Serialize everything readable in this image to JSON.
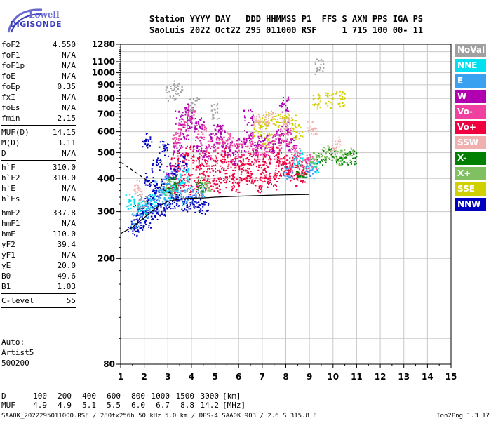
{
  "logo": {
    "line1": "Lowell",
    "line2": "DIGISONDE"
  },
  "header": {
    "line1": "Station YYYY DAY   DDD HHMMSS P1  FFS S AXN PPS IGA PS",
    "line2": "SaoLuis 2022 Oct22 295 011000 RSF     1 715 100 00- 11"
  },
  "params": [
    {
      "name": "foF2",
      "value": "4.550"
    },
    {
      "name": "foF1",
      "value": "N/A"
    },
    {
      "name": "foF1p",
      "value": "N/A"
    },
    {
      "name": "foE",
      "value": "N/A"
    },
    {
      "name": "foEp",
      "value": "0.35"
    },
    {
      "name": "fxI",
      "value": "N/A"
    },
    {
      "name": "foEs",
      "value": "N/A"
    },
    {
      "name": "fmin",
      "value": "2.15",
      "sep": true
    },
    {
      "name": "MUF(D)",
      "value": "14.15"
    },
    {
      "name": "M(D)",
      "value": "3.11"
    },
    {
      "name": "D",
      "value": "N/A",
      "sep": true
    },
    {
      "name": "h`F",
      "value": "310.0"
    },
    {
      "name": "h`F2",
      "value": "310.0"
    },
    {
      "name": "h`E",
      "value": "N/A"
    },
    {
      "name": "h`Es",
      "value": "N/A",
      "sep": true
    },
    {
      "name": "hmF2",
      "value": "337.8"
    },
    {
      "name": "hmF1",
      "value": "N/A"
    },
    {
      "name": "hmE",
      "value": "110.0"
    },
    {
      "name": "yF2",
      "value": "39.4"
    },
    {
      "name": "yF1",
      "value": "N/A"
    },
    {
      "name": "yE",
      "value": "20.0"
    },
    {
      "name": "B0",
      "value": "49.6"
    },
    {
      "name": "B1",
      "value": "1.03",
      "sep": true
    },
    {
      "name": "C-level",
      "value": "55",
      "sep": true
    }
  ],
  "auto": {
    "line1": "Auto:",
    "line2": "Artist5",
    "line3": "500200"
  },
  "muf_table": {
    "d_label": "D",
    "muf_label": "MUF",
    "distances": [
      "100",
      "200",
      "400",
      "600",
      "800",
      "1000",
      "1500",
      "3000"
    ],
    "d_unit": "[km]",
    "mufs": [
      "4.9",
      "4.9",
      "5.1",
      "5.5",
      "6.0",
      "6.7",
      "8.8",
      "14.2"
    ],
    "muf_unit": "[MHz]"
  },
  "footer": {
    "left": "SAA0K_2022295011000.RSF / 280fx256h 50 kHz 5.0 km / DPS-4 SAA0K 903 / 2.6 S 315.8 E",
    "right": "Ion2Png 1.3.17"
  },
  "legend": [
    {
      "label": "NoVal",
      "color": "#a0a0a0"
    },
    {
      "label": "NNE",
      "color": "#00e0f0"
    },
    {
      "label": "E",
      "color": "#3aa0f0"
    },
    {
      "label": "W",
      "color": "#b000b0"
    },
    {
      "label": "Vo-",
      "color": "#f040a0"
    },
    {
      "label": "Vo+",
      "color": "#f00040"
    },
    {
      "label": "SSW",
      "color": "#f0b0b0"
    },
    {
      "label": "X-",
      "color": "#008000"
    },
    {
      "label": "X+",
      "color": "#80c060"
    },
    {
      "label": "SSE",
      "color": "#d0d000"
    },
    {
      "label": "NNW",
      "color": "#0000c0"
    }
  ],
  "chart_data": {
    "type": "scatter",
    "title": "",
    "xlabel": "",
    "ylabel": "",
    "x_unit_note": "frequency (MHz)",
    "xlim": [
      1,
      15
    ],
    "ylim": [
      80,
      1280
    ],
    "y_scale": "log",
    "x_ticks": [
      "1",
      "2",
      "3",
      "4",
      "5",
      "6",
      "7",
      "8",
      "9",
      "10",
      "11",
      "12",
      "13",
      "14",
      "15"
    ],
    "y_ticks_major": [
      "1280",
      "1100",
      "1000",
      "900",
      "800",
      "700",
      "600",
      "500",
      "400",
      "300",
      "200",
      "80"
    ],
    "y_ticks_values": [
      1280,
      1100,
      1000,
      900,
      800,
      700,
      600,
      500,
      400,
      300,
      200,
      80
    ],
    "grid": true,
    "series": [
      {
        "color": "#f00040",
        "points": [
          [
            3.2,
            360
          ],
          [
            3.5,
            380
          ],
          [
            3.8,
            400
          ],
          [
            4.1,
            370
          ],
          [
            4.4,
            420
          ],
          [
            4.7,
            390
          ],
          [
            5.0,
            380
          ],
          [
            5.3,
            410
          ],
          [
            5.6,
            395
          ],
          [
            5.9,
            380
          ],
          [
            6.2,
            420
          ],
          [
            6.5,
            400
          ],
          [
            6.8,
            380
          ],
          [
            7.1,
            410
          ],
          [
            7.4,
            390
          ],
          [
            7.7,
            430
          ],
          [
            8.0,
            440
          ],
          [
            8.3,
            420
          ],
          [
            8.6,
            400
          ],
          [
            3.3,
            450
          ],
          [
            3.6,
            470
          ],
          [
            3.9,
            500
          ],
          [
            4.2,
            460
          ],
          [
            4.5,
            480
          ],
          [
            4.8,
            450
          ],
          [
            5.1,
            470
          ],
          [
            5.4,
            490
          ],
          [
            5.7,
            460
          ],
          [
            6.0,
            470
          ],
          [
            6.3,
            450
          ],
          [
            6.6,
            480
          ],
          [
            6.9,
            460
          ],
          [
            7.2,
            470
          ],
          [
            7.5,
            500
          ],
          [
            7.8,
            480
          ],
          [
            8.1,
            460
          ],
          [
            8.4,
            470
          ],
          [
            8.7,
            440
          ]
        ]
      },
      {
        "color": "#b000b0",
        "points": [
          [
            3.1,
            420
          ],
          [
            3.4,
            520
          ],
          [
            3.7,
            600
          ],
          [
            4.0,
            650
          ],
          [
            4.3,
            540
          ],
          [
            4.6,
            500
          ],
          [
            4.9,
            560
          ],
          [
            5.2,
            600
          ],
          [
            5.5,
            520
          ],
          [
            5.8,
            480
          ],
          [
            6.1,
            540
          ],
          [
            6.4,
            570
          ],
          [
            6.7,
            520
          ],
          [
            7.0,
            560
          ],
          [
            7.3,
            520
          ],
          [
            7.6,
            580
          ],
          [
            7.9,
            620
          ],
          [
            8.2,
            540
          ],
          [
            3.5,
            680
          ],
          [
            3.9,
            720
          ],
          [
            4.3,
            640
          ],
          [
            7.9,
            760
          ],
          [
            6.4,
            680
          ],
          [
            5.1,
            600
          ]
        ]
      },
      {
        "color": "#f040a0",
        "points": [
          [
            3.3,
            560
          ],
          [
            3.6,
            620
          ],
          [
            4.0,
            700
          ],
          [
            4.4,
            600
          ],
          [
            4.8,
            520
          ],
          [
            5.2,
            540
          ],
          [
            5.6,
            560
          ],
          [
            6.0,
            510
          ],
          [
            6.4,
            540
          ],
          [
            6.8,
            500
          ],
          [
            7.2,
            520
          ],
          [
            7.6,
            550
          ],
          [
            8.0,
            580
          ],
          [
            8.4,
            500
          ],
          [
            8.8,
            470
          ],
          [
            9.1,
            460
          ]
        ]
      },
      {
        "color": "#0000c0",
        "points": [
          [
            1.5,
            260
          ],
          [
            1.8,
            270
          ],
          [
            2.1,
            280
          ],
          [
            2.4,
            300
          ],
          [
            2.7,
            310
          ],
          [
            3.0,
            320
          ],
          [
            3.3,
            330
          ],
          [
            3.6,
            320
          ],
          [
            3.9,
            325
          ],
          [
            4.2,
            320
          ],
          [
            4.5,
            315
          ],
          [
            1.7,
            300
          ],
          [
            2.0,
            320
          ],
          [
            2.3,
            340
          ],
          [
            2.6,
            360
          ],
          [
            2.9,
            380
          ],
          [
            3.2,
            430
          ],
          [
            3.6,
            460
          ],
          [
            2.2,
            400
          ],
          [
            2.5,
            460
          ],
          [
            2.8,
            520
          ],
          [
            2.1,
            560
          ]
        ]
      },
      {
        "color": "#3aa0f0",
        "points": [
          [
            1.6,
            280
          ],
          [
            2.0,
            300
          ],
          [
            2.4,
            320
          ],
          [
            2.8,
            340
          ],
          [
            3.2,
            360
          ],
          [
            3.6,
            340
          ],
          [
            4.0,
            350
          ],
          [
            4.4,
            360
          ],
          [
            8.1,
            420
          ],
          [
            9.0,
            430
          ],
          [
            3.0,
            400
          ],
          [
            2.6,
            370
          ]
        ]
      },
      {
        "color": "#00e0f0",
        "points": [
          [
            1.4,
            330
          ],
          [
            1.9,
            310
          ],
          [
            2.3,
            330
          ],
          [
            2.9,
            350
          ],
          [
            3.3,
            380
          ],
          [
            3.7,
            410
          ],
          [
            8.5,
            480
          ],
          [
            9.2,
            450
          ]
        ]
      },
      {
        "color": "#d0d000",
        "points": [
          [
            7.0,
            660
          ],
          [
            7.4,
            680
          ],
          [
            7.8,
            670
          ],
          [
            8.2,
            660
          ],
          [
            9.3,
            780
          ],
          [
            9.8,
            790
          ],
          [
            10.3,
            800
          ],
          [
            8.5,
            600
          ],
          [
            7.2,
            560
          ],
          [
            6.8,
            620
          ]
        ]
      },
      {
        "color": "#008000",
        "points": [
          [
            9.5,
            480
          ],
          [
            10.0,
            490
          ],
          [
            10.4,
            470
          ],
          [
            10.8,
            480
          ],
          [
            3.2,
            390
          ],
          [
            4.4,
            380
          ],
          [
            8.6,
            420
          ]
        ]
      },
      {
        "color": "#80c060",
        "points": [
          [
            9.2,
            470
          ],
          [
            9.7,
            500
          ],
          [
            10.2,
            480
          ],
          [
            10.6,
            490
          ],
          [
            3.0,
            370
          ],
          [
            4.6,
            380
          ]
        ]
      },
      {
        "color": "#f0b0b0",
        "points": [
          [
            6.8,
            660
          ],
          [
            7.3,
            670
          ],
          [
            7.9,
            650
          ],
          [
            9.1,
            620
          ],
          [
            10.1,
            540
          ],
          [
            1.7,
            370
          ]
        ]
      },
      {
        "color": "#a0a0a0",
        "points": [
          [
            3.1,
            840
          ],
          [
            3.4,
            880
          ],
          [
            4.1,
            760
          ],
          [
            5.0,
            720
          ],
          [
            9.4,
            1060
          ],
          [
            1.9,
            330
          ]
        ]
      }
    ],
    "traces": [
      {
        "name": "",
        "style": "solid",
        "points": [
          [
            1.0,
            248
          ],
          [
            1.5,
            262
          ],
          [
            2.0,
            285
          ],
          [
            2.5,
            310
          ],
          [
            3.0,
            328
          ],
          [
            3.5,
            335
          ],
          [
            4.0,
            337
          ],
          [
            4.55,
            338
          ],
          [
            5.0,
            340
          ],
          [
            6.0,
            343
          ],
          [
            7.0,
            345
          ],
          [
            8.0,
            347
          ],
          [
            9.0,
            348
          ]
        ]
      },
      {
        "name": "",
        "style": "dashed",
        "points": [
          [
            1.0,
            460
          ],
          [
            1.5,
            430
          ],
          [
            2.0,
            400
          ],
          [
            2.5,
            375
          ],
          [
            3.0,
            355
          ],
          [
            3.5,
            345
          ]
        ]
      }
    ]
  }
}
